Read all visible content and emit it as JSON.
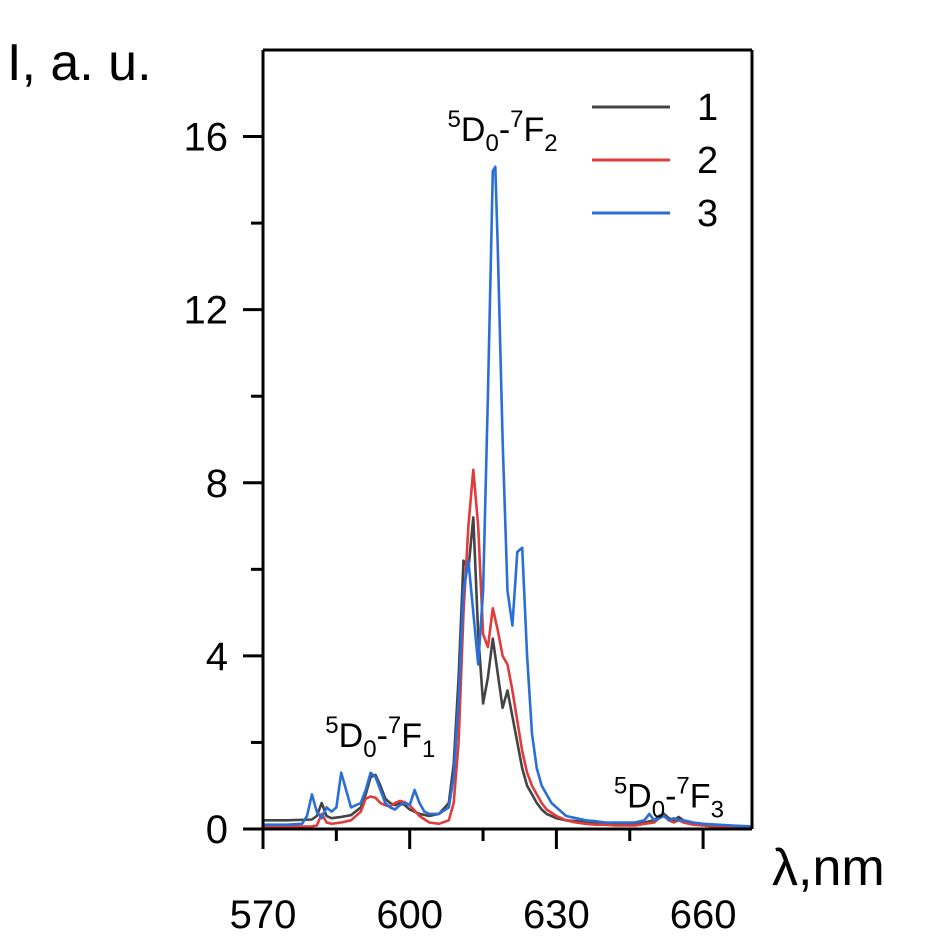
{
  "chart_data": {
    "type": "line",
    "title": "",
    "xlabel": "λ,nm",
    "ylabel": "I, a. u.",
    "xlim": [
      570,
      670
    ],
    "ylim": [
      0,
      18
    ],
    "x_ticks": [
      570,
      600,
      630,
      660
    ],
    "x_tick_labels": [
      "570",
      "600",
      "630",
      "660"
    ],
    "y_ticks": [
      0,
      4,
      8,
      12,
      16
    ],
    "y_tick_labels": [
      "0",
      "4",
      "8",
      "12",
      "16"
    ],
    "grid": false,
    "legend": {
      "position": "top-right"
    },
    "series": [
      {
        "name": "1",
        "color": "#444444",
        "x": [
          570,
          575,
          580,
          581,
          582,
          583,
          584,
          586,
          588,
          590,
          591,
          592,
          593,
          594,
          595,
          596,
          597,
          598,
          599,
          600,
          602,
          604,
          606,
          608,
          609,
          610,
          611,
          612,
          613,
          614,
          615,
          616,
          617,
          618,
          619,
          620,
          621,
          622,
          623,
          624,
          625,
          626,
          627,
          628,
          630,
          632,
          634,
          636,
          638,
          640,
          642,
          644,
          646,
          648,
          650,
          651,
          652,
          653,
          654,
          655,
          656,
          658,
          660,
          663,
          666,
          670
        ],
        "y": [
          0.2,
          0.2,
          0.22,
          0.3,
          0.6,
          0.3,
          0.25,
          0.28,
          0.32,
          0.5,
          0.8,
          1.2,
          1.25,
          1.0,
          0.7,
          0.6,
          0.55,
          0.6,
          0.55,
          0.45,
          0.35,
          0.3,
          0.35,
          0.6,
          1.5,
          3.5,
          6.2,
          6.0,
          7.2,
          4.5,
          2.9,
          3.5,
          4.4,
          3.6,
          2.8,
          3.2,
          2.6,
          2.0,
          1.4,
          1.0,
          0.8,
          0.6,
          0.45,
          0.35,
          0.25,
          0.2,
          0.18,
          0.16,
          0.15,
          0.14,
          0.13,
          0.12,
          0.12,
          0.15,
          0.2,
          0.3,
          0.35,
          0.25,
          0.2,
          0.28,
          0.2,
          0.12,
          0.1,
          0.08,
          0.06,
          0.05
        ]
      },
      {
        "name": "2",
        "color": "#e03c3c",
        "x": [
          570,
          575,
          580,
          581,
          582,
          583,
          584,
          586,
          588,
          590,
          591,
          592,
          593,
          594,
          595,
          596,
          597,
          598,
          599,
          600,
          602,
          604,
          606,
          608,
          609,
          610,
          611,
          612,
          613,
          614,
          615,
          616,
          617,
          618,
          619,
          620,
          621,
          622,
          623,
          624,
          625,
          626,
          627,
          628,
          630,
          632,
          634,
          636,
          638,
          640,
          642,
          644,
          646,
          648,
          650,
          651,
          652,
          653,
          654,
          655,
          656,
          658,
          660,
          663,
          666,
          670
        ],
        "y": [
          0.05,
          0.05,
          0.06,
          0.08,
          0.35,
          0.15,
          0.12,
          0.15,
          0.2,
          0.4,
          0.7,
          0.75,
          0.72,
          0.6,
          0.55,
          0.52,
          0.6,
          0.65,
          0.62,
          0.55,
          0.3,
          0.15,
          0.12,
          0.2,
          0.6,
          2.0,
          5.0,
          7.0,
          8.3,
          7.0,
          4.5,
          4.2,
          5.1,
          4.6,
          4.0,
          3.8,
          3.2,
          2.5,
          1.8,
          1.3,
          1.0,
          0.8,
          0.6,
          0.45,
          0.3,
          0.2,
          0.15,
          0.12,
          0.1,
          0.1,
          0.08,
          0.08,
          0.08,
          0.12,
          0.15,
          0.25,
          0.3,
          0.2,
          0.15,
          0.2,
          0.15,
          0.1,
          0.08,
          0.05,
          0.04,
          0.03
        ]
      },
      {
        "name": "3",
        "color": "#2a6fd6",
        "x": [
          570,
          575,
          578,
          579,
          580,
          581,
          582,
          583,
          584,
          585,
          586,
          587,
          588,
          590,
          591,
          592,
          593,
          594,
          595,
          596,
          597,
          598,
          599,
          600,
          601,
          602,
          603,
          604,
          606,
          608,
          609,
          610,
          611,
          612,
          613,
          614,
          615,
          616,
          617,
          617.5,
          618,
          619,
          620,
          621,
          622,
          623,
          624,
          625,
          626,
          627,
          628,
          629,
          630,
          632,
          634,
          636,
          638,
          640,
          642,
          644,
          646,
          648,
          649,
          650,
          651,
          652,
          653,
          654,
          655,
          656,
          658,
          660,
          663,
          666,
          670
        ],
        "y": [
          0.1,
          0.1,
          0.12,
          0.3,
          0.8,
          0.4,
          0.25,
          0.5,
          0.4,
          0.5,
          1.3,
          0.9,
          0.5,
          0.6,
          0.9,
          1.3,
          1.2,
          0.9,
          0.6,
          0.5,
          0.45,
          0.55,
          0.6,
          0.55,
          0.9,
          0.6,
          0.4,
          0.35,
          0.35,
          0.5,
          1.2,
          3.0,
          5.5,
          6.2,
          5.0,
          3.8,
          5.5,
          10.0,
          15.2,
          15.3,
          13.5,
          9.0,
          5.5,
          4.7,
          6.4,
          6.5,
          4.0,
          2.2,
          1.4,
          1.0,
          0.8,
          0.6,
          0.5,
          0.3,
          0.25,
          0.2,
          0.18,
          0.15,
          0.15,
          0.15,
          0.15,
          0.2,
          0.35,
          0.2,
          0.25,
          0.3,
          0.2,
          0.25,
          0.2,
          0.2,
          0.15,
          0.12,
          0.1,
          0.08,
          0.06
        ]
      }
    ],
    "annotations": [
      {
        "id": "f2",
        "sup": "5",
        "base1": "D",
        "sub1": "0",
        "dash": "-",
        "sup2": "7",
        "base2": "F",
        "sub2": "2",
        "x": 619,
        "y": 15.9
      },
      {
        "id": "f1",
        "sup": "5",
        "base1": "D",
        "sub1": "0",
        "dash": "-",
        "sup2": "7",
        "base2": "F",
        "sub2": "1",
        "x": 594,
        "y": 1.9
      },
      {
        "id": "f3",
        "sup": "5",
        "base1": "D",
        "sub1": "0",
        "dash": "-",
        "sup2": "7",
        "base2": "F",
        "sub2": "3",
        "x": 653,
        "y": 0.5
      }
    ]
  }
}
